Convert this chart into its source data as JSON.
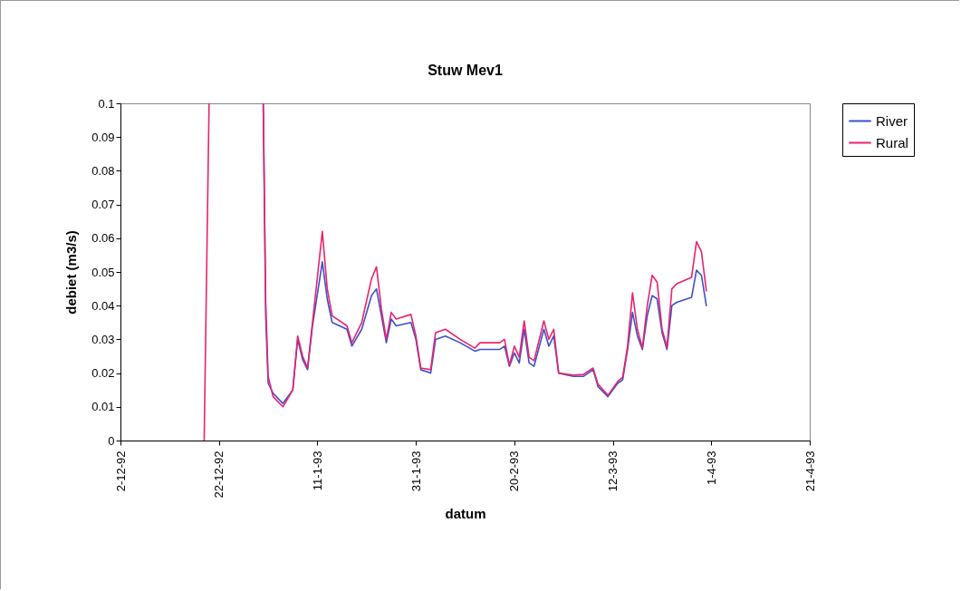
{
  "chart_data": {
    "type": "line",
    "title": "Stuw Mev1",
    "xlabel": "datum",
    "ylabel": "debiet (m3/s)",
    "x": [
      "1992-12-19",
      "1992-12-20",
      "1992-12-25",
      "1992-12-31",
      "1992-12-31T12:00",
      "1993-01-01",
      "1993-01-02",
      "1993-01-04",
      "1993-01-06",
      "1993-01-07",
      "1993-01-08",
      "1993-01-09",
      "1993-01-10",
      "1993-01-12",
      "1993-01-13",
      "1993-01-14",
      "1993-01-17",
      "1993-01-18",
      "1993-01-20",
      "1993-01-22",
      "1993-01-23",
      "1993-01-24",
      "1993-01-25",
      "1993-01-26",
      "1993-01-27",
      "1993-01-30",
      "1993-01-31",
      "1993-02-01",
      "1993-02-03",
      "1993-02-04",
      "1993-02-06",
      "1993-02-09",
      "1993-02-12",
      "1993-02-13",
      "1993-02-17",
      "1993-02-18",
      "1993-02-19",
      "1993-02-20",
      "1993-02-21",
      "1993-02-22",
      "1993-02-23",
      "1993-02-24",
      "1993-02-26",
      "1993-02-27",
      "1993-02-28",
      "1993-03-01",
      "1993-03-04",
      "1993-03-06",
      "1993-03-08",
      "1993-03-09",
      "1993-03-11",
      "1993-03-13",
      "1993-03-14",
      "1993-03-15",
      "1993-03-16",
      "1993-03-17",
      "1993-03-18",
      "1993-03-19",
      "1993-03-20",
      "1993-03-21",
      "1993-03-22",
      "1993-03-23",
      "1993-03-24",
      "1993-03-25",
      "1993-03-28",
      "1993-03-29",
      "1993-03-30",
      "1993-03-31"
    ],
    "series": [
      {
        "name": "River",
        "color": "#3c50c8",
        "values": [
          null,
          null,
          null,
          0.1,
          0.037,
          0.017,
          0.014,
          0.011,
          0.015,
          0.03,
          0.024,
          0.021,
          0.034,
          0.053,
          0.042,
          0.035,
          0.033,
          0.028,
          0.033,
          0.043,
          0.045,
          0.037,
          0.029,
          0.036,
          0.034,
          0.035,
          0.03,
          0.021,
          0.02,
          0.03,
          0.031,
          0.029,
          0.0265,
          0.027,
          0.027,
          0.028,
          0.022,
          0.026,
          0.023,
          0.033,
          0.023,
          0.022,
          0.033,
          0.028,
          0.031,
          0.02,
          0.019,
          0.019,
          0.021,
          0.016,
          0.013,
          0.017,
          0.018,
          0.027,
          0.038,
          0.031,
          0.027,
          0.037,
          0.043,
          0.042,
          0.032,
          0.027,
          0.04,
          0.041,
          0.0425,
          0.0505,
          0.049,
          0.04
        ]
      },
      {
        "name": "Rural",
        "color": "#e8236e",
        "values": [
          0,
          0.1,
          null,
          0.1,
          0.041,
          0.019,
          0.013,
          0.01,
          0.015,
          0.031,
          0.025,
          0.0215,
          0.035,
          0.062,
          0.045,
          0.037,
          0.034,
          0.029,
          0.035,
          0.048,
          0.0515,
          0.039,
          0.03,
          0.038,
          0.036,
          0.0374,
          0.031,
          0.0215,
          0.021,
          0.032,
          0.033,
          0.03,
          0.0274,
          0.029,
          0.029,
          0.03,
          0.0223,
          0.028,
          0.0247,
          0.0355,
          0.0247,
          0.0237,
          0.0355,
          0.03,
          0.033,
          0.02,
          0.0194,
          0.0196,
          0.0215,
          0.0167,
          0.0134,
          0.0175,
          0.0188,
          0.028,
          0.0438,
          0.033,
          0.0274,
          0.04,
          0.049,
          0.047,
          0.033,
          0.0277,
          0.045,
          0.0465,
          0.0484,
          0.059,
          0.056,
          0.0444
        ]
      }
    ],
    "xlim": [
      "1992-12-02",
      "1993-04-21"
    ],
    "xticks": [
      {
        "value": "1992-12-02",
        "label": "2-12-92"
      },
      {
        "value": "1992-12-22",
        "label": "22-12-92"
      },
      {
        "value": "1993-01-11",
        "label": "11-1-93"
      },
      {
        "value": "1993-01-31",
        "label": "31-1-93"
      },
      {
        "value": "1993-02-20",
        "label": "20-2-93"
      },
      {
        "value": "1993-03-12",
        "label": "12-3-93"
      },
      {
        "value": "1993-04-01",
        "label": "1-4-93"
      },
      {
        "value": "1993-04-21",
        "label": "21-4-93"
      }
    ],
    "ylim": [
      0,
      0.1
    ],
    "yticks": [
      0,
      0.01,
      0.02,
      0.03,
      0.04,
      0.05,
      0.06,
      0.07,
      0.08,
      0.09,
      0.1
    ],
    "legend": "right",
    "marker": "none",
    "line_style": "solid"
  }
}
